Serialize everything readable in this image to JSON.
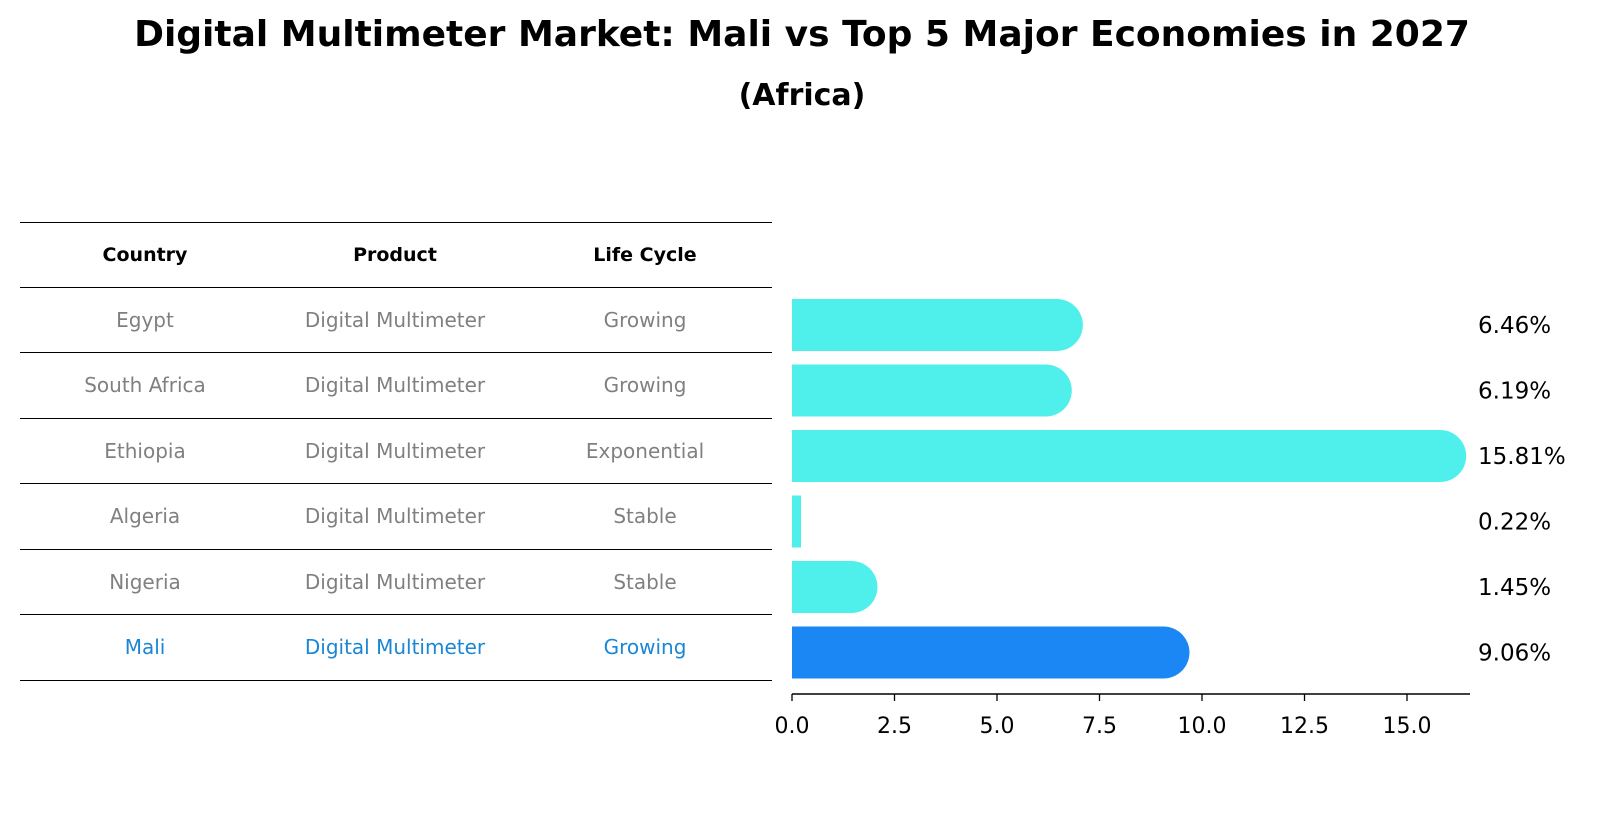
{
  "title": "Digital Multimeter Market: Mali vs Top 5 Major Economies in 2027",
  "subtitle": "(Africa)",
  "table": {
    "headers": [
      "Country",
      "Product",
      "Life Cycle"
    ],
    "rows": [
      {
        "country": "Egypt",
        "product": "Digital Multimeter",
        "life_cycle": "Growing",
        "highlight": false
      },
      {
        "country": "South Africa",
        "product": "Digital Multimeter",
        "life_cycle": "Growing",
        "highlight": false
      },
      {
        "country": "Ethiopia",
        "product": "Digital Multimeter",
        "life_cycle": "Exponential",
        "highlight": false
      },
      {
        "country": "Algeria",
        "product": "Digital Multimeter",
        "life_cycle": "Stable",
        "highlight": false
      },
      {
        "country": "Nigeria",
        "product": "Digital Multimeter",
        "life_cycle": "Stable",
        "highlight": false
      },
      {
        "country": "Mali",
        "product": "Digital Multimeter",
        "life_cycle": "Growing",
        "highlight": true
      }
    ]
  },
  "chart_data": {
    "type": "bar",
    "orientation": "horizontal",
    "categories": [
      "Egypt",
      "South Africa",
      "Ethiopia",
      "Algeria",
      "Nigeria",
      "Mali"
    ],
    "values": [
      6.46,
      6.19,
      15.81,
      0.22,
      1.45,
      9.06
    ],
    "value_labels": [
      "6.46%",
      "6.19%",
      "15.81%",
      "0.22%",
      "1.45%",
      "9.06%"
    ],
    "xlim": [
      0,
      16.6
    ],
    "xticks": [
      0.0,
      2.5,
      5.0,
      7.5,
      10.0,
      12.5,
      15.0
    ],
    "xtick_labels": [
      "0.0",
      "2.5",
      "5.0",
      "7.5",
      "10.0",
      "12.5",
      "15.0"
    ],
    "xlabel": "",
    "ylabel": "",
    "grid": false,
    "colors": {
      "default": "#4ff0eb",
      "highlight": "#1a87f5"
    },
    "highlight_category": "Mali"
  }
}
